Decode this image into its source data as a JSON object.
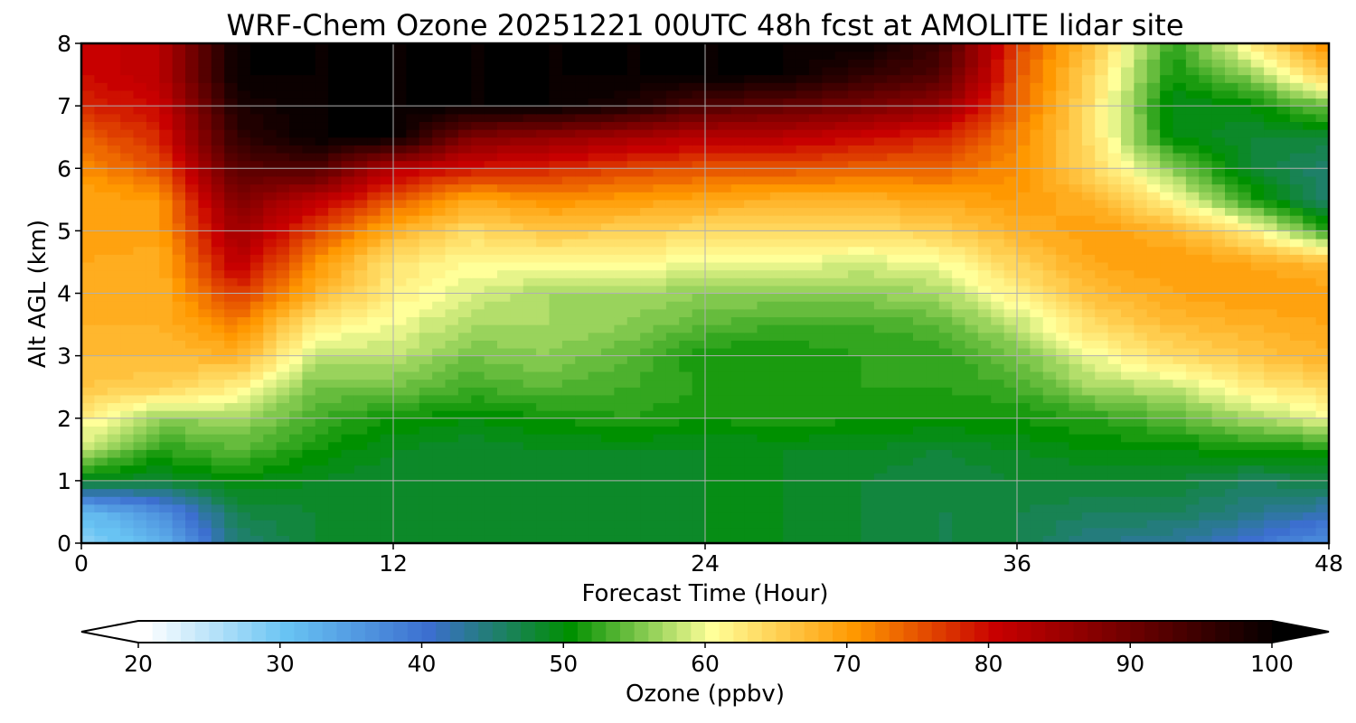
{
  "chart_data": {
    "type": "heatmap",
    "title": "WRF-Chem Ozone  20251221 00UTC 48h fcst at AMOLITE lidar site",
    "xlabel": "Forecast Time (Hour)",
    "ylabel": "Alt AGL (km)",
    "xlim": [
      0,
      48
    ],
    "ylim": [
      0,
      8
    ],
    "x_ticks": [
      0,
      12,
      24,
      36,
      48
    ],
    "y_ticks": [
      0,
      1,
      2,
      3,
      4,
      5,
      6,
      7,
      8
    ],
    "grid": true,
    "x": [
      0,
      3,
      6,
      9,
      12,
      15,
      18,
      21,
      24,
      27,
      30,
      33,
      36,
      39,
      42,
      45,
      48
    ],
    "y": [
      0,
      0.5,
      1,
      1.5,
      2,
      2.5,
      3,
      3.5,
      4,
      4.5,
      5,
      5.5,
      6,
      6.5,
      7,
      7.5,
      8
    ],
    "z": [
      [
        28,
        32,
        45,
        48,
        48,
        48,
        48,
        48,
        49,
        49,
        48,
        47,
        47,
        44,
        43,
        40,
        36
      ],
      [
        31,
        36,
        47,
        48,
        48,
        48,
        48,
        48,
        49,
        49,
        48,
        47,
        47,
        46,
        46,
        44,
        42
      ],
      [
        49,
        48,
        50,
        49,
        48,
        48,
        48,
        48,
        49,
        49,
        48,
        47,
        48,
        48,
        48,
        46,
        47
      ],
      [
        58,
        52,
        54,
        51,
        49,
        48,
        49,
        49,
        49,
        49,
        49,
        48,
        49,
        50,
        50,
        51,
        51
      ],
      [
        62,
        56,
        57,
        53,
        51,
        50,
        51,
        52,
        51,
        52,
        51,
        51,
        51,
        52,
        54,
        57,
        60
      ],
      [
        66,
        65,
        62,
        55,
        55,
        53,
        54,
        53,
        52,
        52,
        52,
        52,
        53,
        57,
        58,
        62,
        64
      ],
      [
        67,
        67,
        68,
        58,
        58,
        55,
        56,
        54,
        51,
        51,
        52,
        52,
        55,
        60,
        64,
        66,
        68
      ],
      [
        68,
        68,
        72,
        62,
        60,
        57,
        57,
        56,
        54,
        53,
        53,
        54,
        58,
        64,
        67,
        68,
        69
      ],
      [
        68,
        68,
        77,
        68,
        62,
        59,
        57,
        57,
        56,
        56,
        56,
        57,
        62,
        67,
        69,
        70,
        70
      ],
      [
        69,
        68,
        82,
        71,
        63,
        61,
        61,
        61,
        60,
        60,
        59,
        60,
        65,
        69,
        70,
        69,
        67
      ],
      [
        70,
        70,
        85,
        76,
        68,
        64,
        66,
        65,
        64,
        64,
        64,
        65,
        68,
        70,
        68,
        62,
        52
      ],
      [
        69,
        70,
        88,
        82,
        75,
        69,
        71,
        70,
        69,
        68,
        68,
        69,
        70,
        68,
        61,
        52,
        45
      ],
      [
        71,
        75,
        92,
        93,
        82,
        79,
        78,
        76,
        75,
        75,
        74,
        74,
        71,
        64,
        56,
        48,
        45
      ],
      [
        74,
        78,
        96,
        100,
        100,
        88,
        86,
        84,
        82,
        82,
        80,
        78,
        72,
        63,
        50,
        48,
        48
      ],
      [
        78,
        80,
        98,
        100,
        100,
        100,
        100,
        98,
        93,
        91,
        89,
        86,
        74,
        63,
        49,
        50,
        55
      ],
      [
        80,
        82,
        100,
        100,
        100,
        100,
        100,
        100,
        100,
        100,
        96,
        93,
        75,
        64,
        51,
        56,
        66
      ],
      [
        80,
        82,
        100,
        100,
        100,
        100,
        100,
        100,
        100,
        100,
        100,
        95,
        76,
        66,
        52,
        62,
        72
      ]
    ],
    "colorbar": {
      "label": "Ozone  (ppbv)",
      "min": 20,
      "max": 100,
      "step": 1,
      "ticks": [
        20,
        30,
        40,
        50,
        60,
        70,
        80,
        90,
        100
      ],
      "extend": "both",
      "stops": [
        {
          "v": 20,
          "c": "#ffffff"
        },
        {
          "v": 30,
          "c": "#68c3f3"
        },
        {
          "v": 40,
          "c": "#3c6fcf"
        },
        {
          "v": 50,
          "c": "#009000"
        },
        {
          "v": 60,
          "c": "#ffff99"
        },
        {
          "v": 70,
          "c": "#ff9800"
        },
        {
          "v": 80,
          "c": "#c80000"
        },
        {
          "v": 90,
          "c": "#6a0000"
        },
        {
          "v": 100,
          "c": "#000000"
        }
      ]
    }
  }
}
